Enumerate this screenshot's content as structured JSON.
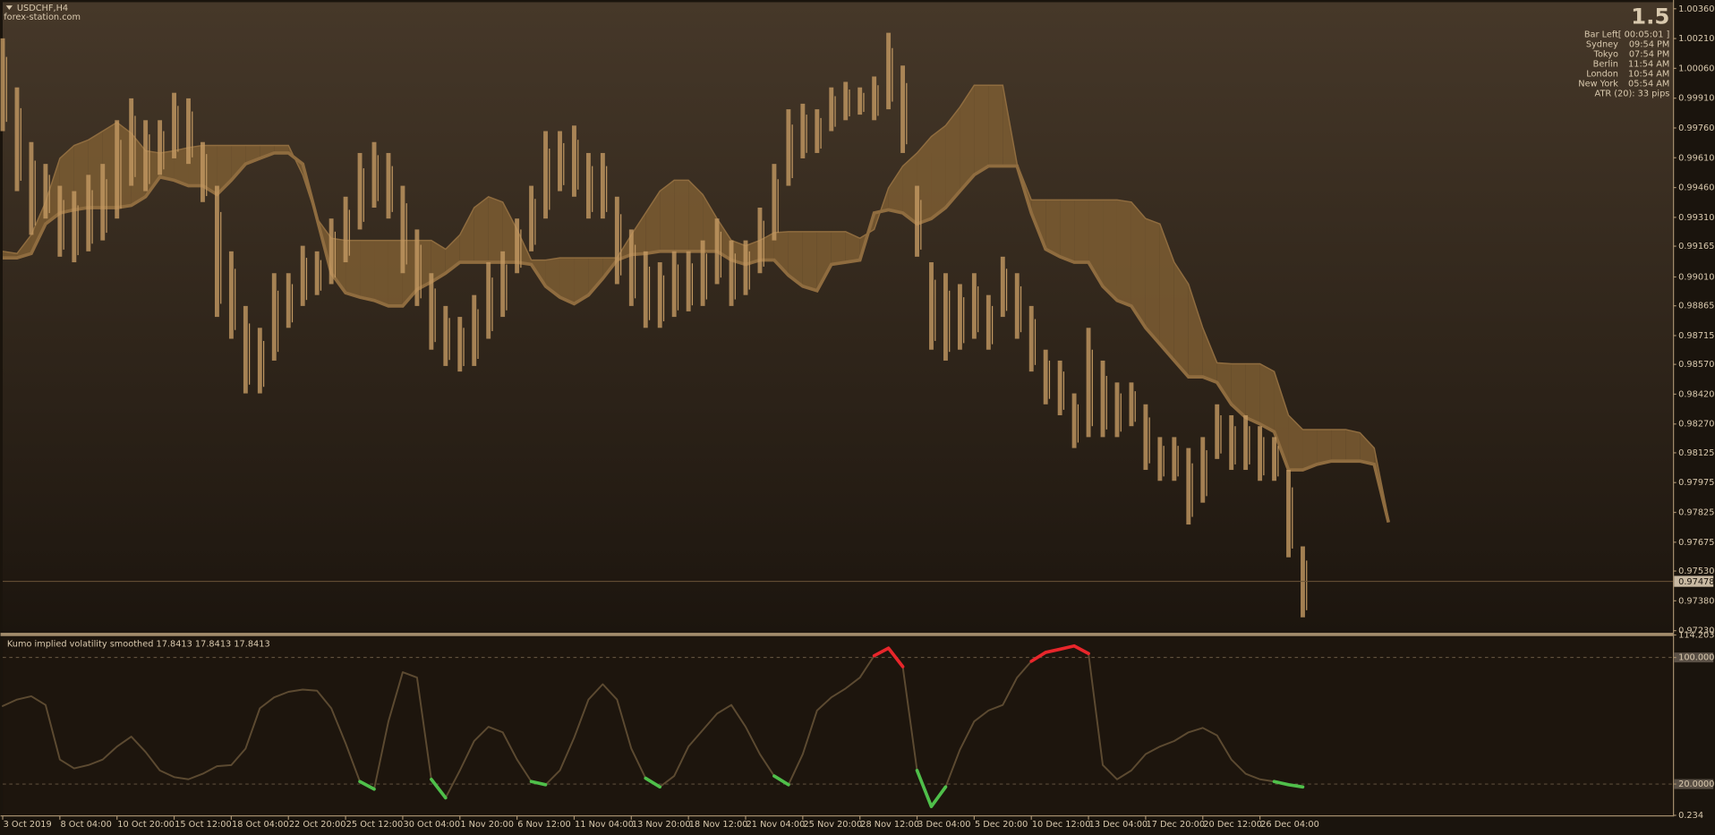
{
  "chart_data": [
    {
      "type": "ichimoku",
      "title": "USDCHF,H4",
      "subtitle": "forex-station.com",
      "candle_color": "#c49a63",
      "cloud_color": "#7d5d33",
      "cloud_line_color": "#8f6c3f",
      "last": 0.97478,
      "ylim": [
        0.97219,
        1.00393
      ],
      "yticks": [
        {
          "value": 1.0036,
          "label": "1.00360"
        },
        {
          "value": 1.0021,
          "label": "1.00210"
        },
        {
          "value": 1.0006,
          "label": "1.00060"
        },
        {
          "value": 0.9991,
          "label": "0.99910"
        },
        {
          "value": 0.9976,
          "label": "0.99760"
        },
        {
          "value": 0.9961,
          "label": "0.99610"
        },
        {
          "value": 0.9946,
          "label": "0.99460"
        },
        {
          "value": 0.9931,
          "label": "0.99310"
        },
        0.99165,
        {
          "value": 0.9901,
          "label": "0.99010"
        },
        0.98865,
        0.98715,
        {
          "value": 0.9857,
          "label": "0.98570"
        },
        {
          "value": 0.9842,
          "label": "0.98420"
        },
        {
          "value": 0.9827,
          "label": "0.98270"
        },
        0.98125,
        0.97975,
        0.97825,
        0.97675,
        {
          "value": 0.9753,
          "label": "0.97530"
        },
        {
          "value": 0.9738,
          "label": "0.97380"
        },
        {
          "value": 0.9723,
          "label": "0.97230"
        }
      ],
      "categories": [
        "3 Oct 2019",
        null,
        null,
        null,
        "8 Oct 04:00",
        null,
        null,
        null,
        "10 Oct 20:00",
        null,
        null,
        null,
        "15 Oct 12:00",
        null,
        null,
        null,
        "18 Oct 04:00",
        null,
        null,
        null,
        "22 Oct 20:00",
        null,
        null,
        null,
        "25 Oct 12:00",
        null,
        null,
        null,
        "30 Oct 04:00",
        null,
        null,
        null,
        "1 Nov 20:00",
        null,
        null,
        null,
        "6 Nov 12:00",
        null,
        null,
        null,
        "11 Nov 04:00",
        null,
        null,
        null,
        "13 Nov 20:00",
        null,
        null,
        null,
        "18 Nov 12:00",
        null,
        null,
        null,
        "21 Nov 04:00",
        null,
        null,
        null,
        "25 Nov 20:00",
        null,
        null,
        null,
        "28 Nov 12:00",
        null,
        null,
        null,
        "3 Dec 04:00",
        null,
        null,
        null,
        "5 Dec 20:00",
        null,
        null,
        null,
        "10 Dec 12:00",
        null,
        null,
        null,
        "13 Dec 04:00",
        null,
        null,
        null,
        "17 Dec 20:00",
        null,
        null,
        null,
        "20 Dec 12:00",
        null,
        null,
        null,
        "26 Dec 04:00",
        null,
        null,
        null,
        null,
        null,
        null,
        null,
        null,
        null
      ],
      "high": [
        1.00211,
        0.99964,
        0.99689,
        0.99579,
        0.99469,
        0.99442,
        0.99524,
        0.99579,
        0.99799,
        0.99909,
        0.99799,
        0.99799,
        0.99937,
        0.99909,
        0.99689,
        0.99469,
        0.99139,
        0.98864,
        0.98754,
        0.99029,
        0.99029,
        0.99167,
        0.99139,
        0.99304,
        0.99414,
        0.99634,
        0.99689,
        0.99634,
        0.99469,
        0.99249,
        0.99029,
        0.98864,
        0.98809,
        0.98919,
        0.99084,
        0.99139,
        0.99304,
        0.99469,
        0.99744,
        0.99744,
        0.99772,
        0.99634,
        0.99634,
        0.99414,
        0.99249,
        0.99139,
        0.99084,
        0.99139,
        0.99139,
        0.99194,
        0.99304,
        0.99194,
        0.99194,
        0.99359,
        0.99579,
        0.99854,
        0.99882,
        0.99854,
        0.99964,
        0.99992,
        0.99964,
        1.00019,
        1.00239,
        1.00074,
        0.99469,
        0.99084,
        0.99029,
        0.98974,
        0.99029,
        0.98919,
        0.99112,
        0.99029,
        0.98864,
        0.98644,
        0.98589,
        0.98424,
        0.98754,
        0.98589,
        0.98479,
        0.98479,
        0.98369,
        0.98204,
        0.98204,
        0.98149,
        0.98204,
        0.98369,
        0.98314,
        0.98314,
        0.98259,
        0.98204,
        0.98039,
        0.97654,
        null,
        null,
        null,
        null,
        null,
        null
      ],
      "low": [
        0.99744,
        0.99442,
        0.99222,
        0.99304,
        0.99112,
        0.99084,
        0.99139,
        0.99194,
        0.99304,
        0.99469,
        0.99442,
        0.99524,
        0.99607,
        0.99579,
        0.99387,
        0.98809,
        0.98699,
        0.98424,
        0.98424,
        0.98589,
        0.98754,
        0.98864,
        0.98919,
        0.98974,
        0.99084,
        0.99249,
        0.99359,
        0.99304,
        0.99029,
        0.98864,
        0.98644,
        0.98562,
        0.98534,
        0.98562,
        0.98699,
        0.98809,
        0.99029,
        0.99139,
        0.99304,
        0.99442,
        0.99414,
        0.99304,
        0.99304,
        0.98974,
        0.98864,
        0.98754,
        0.98754,
        0.98809,
        0.98837,
        0.98864,
        0.98974,
        0.98864,
        0.98919,
        0.99029,
        0.99194,
        0.99469,
        0.99607,
        0.99634,
        0.99744,
        0.99799,
        0.99827,
        0.99799,
        0.99854,
        0.99634,
        0.99112,
        0.98644,
        0.98589,
        0.98644,
        0.98699,
        0.98644,
        0.98809,
        0.98699,
        0.98534,
        0.98369,
        0.98314,
        0.98149,
        0.98204,
        0.98204,
        0.98204,
        0.98259,
        0.98039,
        0.97984,
        0.97984,
        0.97764,
        0.97874,
        0.98094,
        0.98039,
        0.98039,
        0.97984,
        0.97984,
        0.97599,
        0.97297,
        null,
        null,
        null,
        null,
        null,
        null
      ],
      "span_a": [
        0.99139,
        0.99128,
        0.99222,
        0.99387,
        0.99607,
        0.99672,
        0.997,
        0.99744,
        0.99788,
        0.99733,
        0.99645,
        0.99634,
        0.99645,
        0.99661,
        0.99672,
        0.99672,
        0.99672,
        0.99672,
        0.99672,
        0.99672,
        0.99672,
        0.99524,
        0.99304,
        0.99205,
        0.99194,
        0.99194,
        0.99194,
        0.99194,
        0.99194,
        0.99194,
        0.99194,
        0.9915,
        0.99222,
        0.99359,
        0.99414,
        0.99387,
        0.99249,
        0.99095,
        0.99095,
        0.99106,
        0.99106,
        0.99106,
        0.99106,
        0.99106,
        0.99222,
        0.99332,
        0.99442,
        0.99497,
        0.99497,
        0.99425,
        0.99304,
        0.99194,
        0.99167,
        0.99194,
        0.99233,
        0.99238,
        0.99238,
        0.99238,
        0.99238,
        0.99238,
        0.99205,
        0.99249,
        0.99458,
        0.99568,
        0.99634,
        0.99717,
        0.99772,
        0.99865,
        0.99975,
        0.99975,
        0.99975,
        0.99579,
        0.99398,
        0.99398,
        0.99398,
        0.99398,
        0.99398,
        0.99398,
        0.99398,
        0.99387,
        0.99304,
        0.99277,
        0.99084,
        0.98974,
        0.98754,
        0.98578,
        0.98573,
        0.98573,
        0.98573,
        0.98534,
        0.98314,
        0.98242,
        0.98242,
        0.98242,
        0.98242,
        0.98226,
        0.98149,
        0.97792
      ],
      "span_b": [
        0.99106,
        0.99106,
        0.99128,
        0.99277,
        0.99332,
        0.99348,
        0.99359,
        0.99359,
        0.99359,
        0.9937,
        0.99414,
        0.99513,
        0.99497,
        0.99469,
        0.99469,
        0.99425,
        0.99497,
        0.99579,
        0.99607,
        0.99634,
        0.99634,
        0.99579,
        0.99304,
        0.99029,
        0.9893,
        0.98908,
        0.98892,
        0.98864,
        0.98864,
        0.98947,
        0.98985,
        0.99029,
        0.99084,
        0.99084,
        0.99084,
        0.99084,
        0.99084,
        0.99073,
        0.98963,
        0.98908,
        0.98875,
        0.98919,
        0.99002,
        0.99095,
        0.99123,
        0.99128,
        0.99139,
        0.99139,
        0.99139,
        0.99139,
        0.99139,
        0.99095,
        0.99073,
        0.99095,
        0.99095,
        0.99018,
        0.98963,
        0.98941,
        0.99073,
        0.99084,
        0.99095,
        0.99332,
        0.99348,
        0.99332,
        0.99277,
        0.99304,
        0.99359,
        0.99442,
        0.99524,
        0.99568,
        0.99568,
        0.99568,
        0.99332,
        0.9915,
        0.99112,
        0.99084,
        0.99084,
        0.98963,
        0.98892,
        0.98864,
        0.98754,
        0.98672,
        0.98589,
        0.98507,
        0.98507,
        0.98479,
        0.98369,
        0.98303,
        0.9827,
        0.98231,
        0.98039,
        0.98039,
        0.98067,
        0.98083,
        0.98083,
        0.98083,
        0.98067,
        0.97775
      ],
      "panel": {
        "value": "1.5",
        "rows": [
          [
            "Bar Left",
            "[ 00:05:01 ]"
          ],
          [
            "Sydney",
            "09:54 PM"
          ],
          [
            "Tokyo",
            "07:54 PM"
          ],
          [
            "Berlin",
            "11:54 AM"
          ],
          [
            "London",
            "10:54 AM"
          ],
          [
            "New York",
            "05:54 AM"
          ]
        ],
        "footer": "ATR (20): 33 pips"
      }
    },
    {
      "type": "line",
      "title": "Kumo implied volatility smoothed 17.8413 17.8413 17.8413",
      "ylim": [
        0.234,
        114.2032
      ],
      "yticks": [
        114.2032,
        {
          "value": 100,
          "label": "100.0000"
        },
        {
          "value": 20,
          "label": "20.0000"
        },
        0.234
      ],
      "series": [
        {
          "color": "#5c4a31",
          "values": [
            69.3,
            73.4,
            75.5,
            70.0,
            35.5,
            29.9,
            32.0,
            35.5,
            43.7,
            50.0,
            40.3,
            28.6,
            24.4,
            23.0,
            26.5,
            31.3,
            32.0,
            42.4,
            67.9,
            74.8,
            78.3,
            79.7,
            79.0,
            67.9,
            45.8,
            21.6,
            16.8,
            59.6,
            90.7,
            87.3,
            23.0,
            11.3,
            28.6,
            47.2,
            56.2,
            52.7,
            35.5,
            21.6,
            19.6,
            28.6,
            49.3,
            73.4,
            83.1,
            73.4,
            42.4,
            23.7,
            18.2,
            25.1,
            43.7,
            54.1,
            64.5,
            70.0,
            56.2,
            38.9,
            25.1,
            19.6,
            38.9,
            66.5,
            74.8,
            80.4,
            87.3,
            101.1,
            105.9,
            94.2,
            28.6,
            5.8,
            18.2,
            41.7,
            59.6,
            66.5,
            70.0,
            87.3,
            97.6,
            103.2,
            105.2,
            107.3,
            102.5,
            32.0,
            23.0,
            28.6,
            38.9,
            43.7,
            47.2,
            52.7,
            55.5,
            50.7,
            35.5,
            26.5,
            23.0,
            21.6,
            19.6,
            18.2,
            null,
            null,
            null,
            null,
            null,
            null
          ]
        },
        {
          "color": "#e8262b",
          "values": [
            null,
            null,
            null,
            null,
            null,
            null,
            null,
            null,
            null,
            null,
            null,
            null,
            null,
            null,
            null,
            null,
            null,
            null,
            null,
            null,
            null,
            null,
            null,
            null,
            null,
            null,
            null,
            null,
            null,
            null,
            null,
            null,
            null,
            null,
            null,
            null,
            null,
            null,
            null,
            null,
            null,
            null,
            null,
            null,
            null,
            null,
            null,
            null,
            null,
            null,
            null,
            null,
            null,
            null,
            null,
            null,
            null,
            null,
            null,
            null,
            null,
            101.1,
            105.9,
            94.2,
            null,
            null,
            null,
            null,
            null,
            null,
            null,
            null,
            97.6,
            103.2,
            105.2,
            107.3,
            102.5,
            null,
            null,
            null,
            null,
            null,
            null,
            null,
            null,
            null,
            null,
            null,
            null,
            null,
            null,
            null,
            null,
            null,
            null,
            null,
            null,
            null
          ]
        },
        {
          "color": "#4fbf4a",
          "values": [
            null,
            null,
            null,
            null,
            null,
            null,
            null,
            null,
            null,
            null,
            null,
            null,
            null,
            null,
            null,
            null,
            null,
            null,
            null,
            null,
            null,
            null,
            null,
            null,
            null,
            21.6,
            16.8,
            null,
            null,
            null,
            23.0,
            11.3,
            null,
            null,
            null,
            null,
            null,
            21.6,
            19.6,
            null,
            null,
            null,
            null,
            null,
            null,
            23.7,
            18.2,
            null,
            null,
            null,
            null,
            null,
            null,
            null,
            25.1,
            19.6,
            null,
            null,
            null,
            null,
            null,
            null,
            null,
            null,
            28.6,
            5.8,
            18.2,
            null,
            null,
            null,
            null,
            null,
            null,
            null,
            null,
            null,
            null,
            null,
            null,
            null,
            null,
            null,
            null,
            null,
            null,
            null,
            null,
            null,
            null,
            21.6,
            19.6,
            18.2,
            null,
            null,
            null,
            null,
            null,
            null
          ]
        }
      ]
    }
  ]
}
